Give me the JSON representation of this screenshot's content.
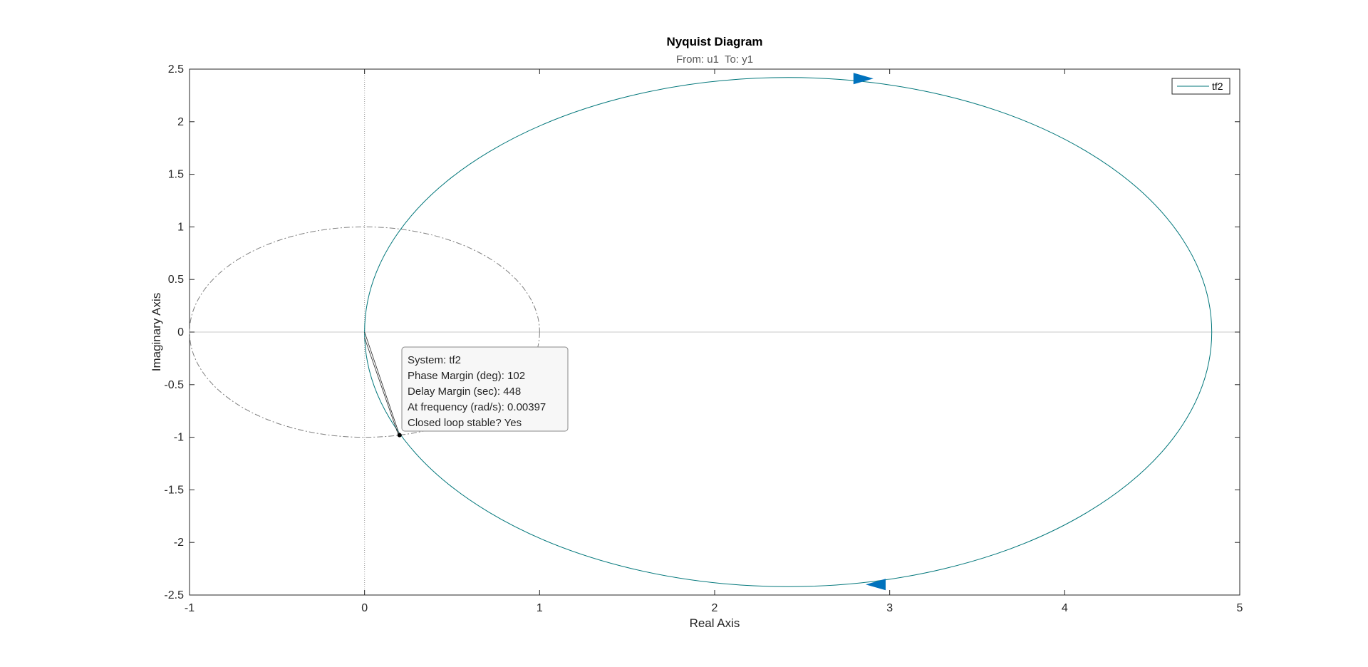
{
  "chart_data": {
    "type": "line",
    "title": "Nyquist Diagram",
    "subtitle": "From: u1  To: y1",
    "xlabel": "Real Axis",
    "ylabel": "Imaginary Axis",
    "xlim": [
      -1,
      5
    ],
    "ylim": [
      -2.5,
      2.5
    ],
    "xticks": [
      -1,
      0,
      1,
      2,
      3,
      4,
      5
    ],
    "xtick_labels": [
      "-1",
      "0",
      "1",
      "2",
      "3",
      "4",
      "5"
    ],
    "yticks": [
      2.5,
      2,
      1.5,
      1,
      0.5,
      0,
      -0.5,
      -1,
      -1.5,
      -2,
      -2.5
    ],
    "ytick_labels": [
      "2.5",
      "2",
      "1.5",
      "1",
      "0.5",
      "0",
      "-0.5",
      "-1",
      "-1.5",
      "-2",
      "-2.5"
    ],
    "grid": false,
    "legend": {
      "placement": "top-right",
      "entries": [
        "tf2"
      ]
    },
    "series": [
      {
        "name": "tf2",
        "color": "#00767a",
        "shape": "circle",
        "center": [
          2.42,
          0
        ],
        "radius": 2.42,
        "arrow_points": [
          [
            2.85,
            2.41
          ],
          [
            2.92,
            -2.4
          ]
        ]
      }
    ],
    "unit_circle": {
      "center": [
        -0.0,
        0
      ],
      "radius": 1,
      "style": "dash-dot",
      "color": "#808080"
    },
    "reference_lines": {
      "real_axis_y": 0,
      "imag_axis_x": 0
    },
    "annotation": {
      "point": [
        0.2,
        -0.98
      ],
      "lines": [
        "System: tf2",
        "Phase Margin (deg): 102",
        "Delay Margin (sec): 448",
        "At frequency (rad/s): 0.00397",
        "Closed loop stable? Yes"
      ]
    },
    "colors": {
      "arrow": "#0072bd",
      "axis": "#262626",
      "tip_bg": "#f7f7f7"
    }
  }
}
